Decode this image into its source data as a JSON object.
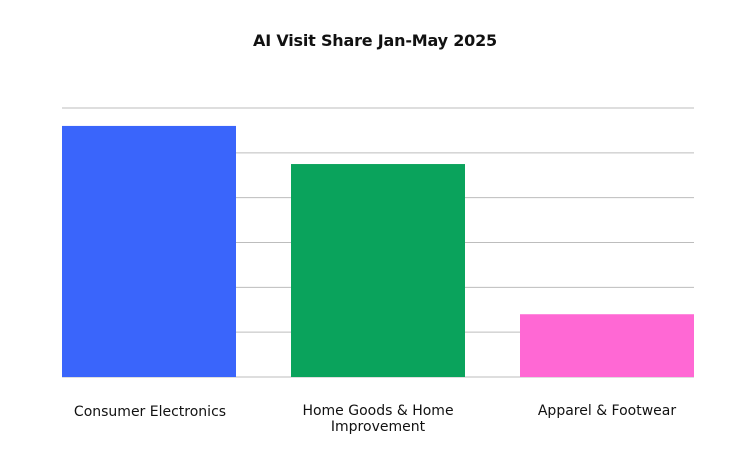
{
  "chart_data": {
    "type": "bar",
    "title": "AI Visit Share Jan-May 2025",
    "xlabel": "",
    "ylabel": "",
    "categories": [
      "Consumer Electronics",
      "Home Goods & Home Improvement",
      "Apparel & Footwear"
    ],
    "category_lines": [
      [
        "Consumer Electronics"
      ],
      [
        "Home Goods & Home",
        "Improvement"
      ],
      [
        "Apparel & Footwear"
      ]
    ],
    "values": [
      5.6,
      4.75,
      1.4
    ],
    "ylim": [
      0,
      6
    ],
    "grid": true,
    "legend": "none",
    "colors": [
      "#3A65FB",
      "#0AA35C",
      "#FF68D4"
    ],
    "gridline_color": "#bdbdbd"
  }
}
